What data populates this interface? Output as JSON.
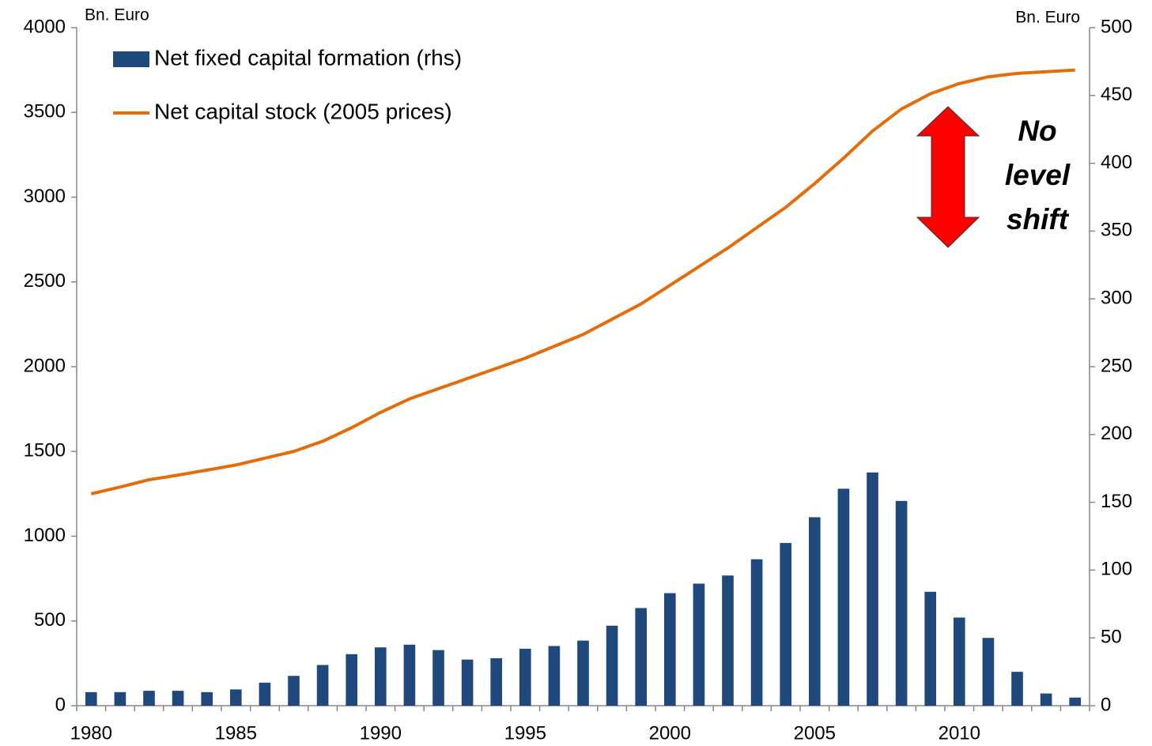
{
  "chart_data": {
    "type": "bar-line",
    "ylabel": "Bn. Euro",
    "y2label": "Bn. Euro",
    "categories": [
      "1980",
      null,
      null,
      null,
      null,
      "1985",
      null,
      null,
      null,
      null,
      "1990",
      null,
      null,
      null,
      null,
      "1995",
      null,
      null,
      null,
      null,
      "2000",
      null,
      null,
      null,
      null,
      "2005",
      null,
      null,
      null,
      null,
      "2010",
      null,
      null,
      null,
      null
    ],
    "series": [
      {
        "name": "Net fixed capital formation (rhs)",
        "type": "bar",
        "axis": "y2",
        "color": "#1f497d",
        "values": [
          10,
          10,
          11,
          11,
          10,
          12,
          17,
          22,
          30,
          38,
          43,
          45,
          41,
          34,
          35,
          42,
          44,
          48,
          59,
          72,
          83,
          90,
          96,
          108,
          120,
          139,
          160,
          172,
          151,
          84,
          65,
          50,
          25,
          9,
          6
        ]
      },
      {
        "name": "Net capital stock (2005 prices)",
        "type": "line",
        "axis": "y",
        "color": "#e46c0a",
        "values": [
          1250,
          1290,
          1333,
          1360,
          1390,
          1420,
          1460,
          1500,
          1560,
          1640,
          1730,
          1810,
          1870,
          1930,
          1990,
          2050,
          2120,
          2190,
          2280,
          2370,
          2480,
          2590,
          2700,
          2820,
          2940,
          3080,
          3230,
          3390,
          3520,
          3610,
          3670,
          3710,
          3730,
          3740,
          3750
        ]
      }
    ],
    "ylim": [
      0,
      4000
    ],
    "yticks": [
      0,
      500,
      1000,
      1500,
      2000,
      2500,
      3000,
      3500,
      4000
    ],
    "y2lim": [
      0,
      500
    ],
    "y2ticks": [
      0,
      50,
      100,
      150,
      200,
      250,
      300,
      350,
      400,
      450,
      500
    ],
    "legend": "top-left",
    "annotation": [
      "No",
      "level",
      "shift"
    ]
  }
}
